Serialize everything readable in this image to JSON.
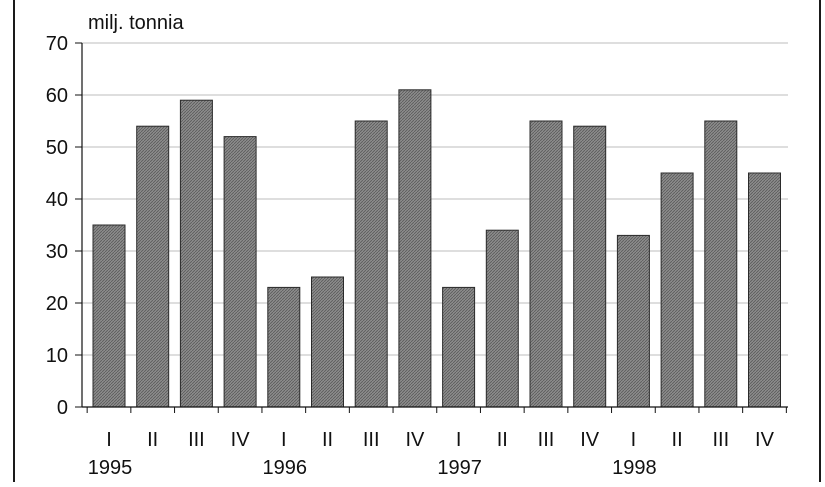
{
  "chart_data": {
    "type": "bar",
    "title": "",
    "ylabel": "milj. tonnia",
    "xlabel": "",
    "ylim": [
      0,
      70
    ],
    "yticks": [
      0,
      10,
      20,
      30,
      40,
      50,
      60,
      70
    ],
    "grid": true,
    "categories": [
      "I",
      "II",
      "III",
      "IV",
      "I",
      "II",
      "III",
      "IV",
      "I",
      "II",
      "III",
      "IV",
      "I",
      "II",
      "III",
      "IV"
    ],
    "groups": [
      {
        "label": "1995",
        "start": 0,
        "count": 4
      },
      {
        "label": "1996",
        "start": 4,
        "count": 4
      },
      {
        "label": "1997",
        "start": 8,
        "count": 4
      },
      {
        "label": "1998",
        "start": 12,
        "count": 4
      }
    ],
    "series": [
      {
        "values": [
          35,
          54,
          59,
          52,
          23,
          25,
          55,
          61,
          23,
          34,
          55,
          54,
          33,
          45,
          55,
          45
        ]
      }
    ],
    "colors": {
      "bar_fill": "#8c8c8c",
      "bar_hatch": "#5a5a5a",
      "bar_stroke": "#2b2b2b",
      "grid": "#bdbdbd",
      "axis": "#111111"
    }
  }
}
